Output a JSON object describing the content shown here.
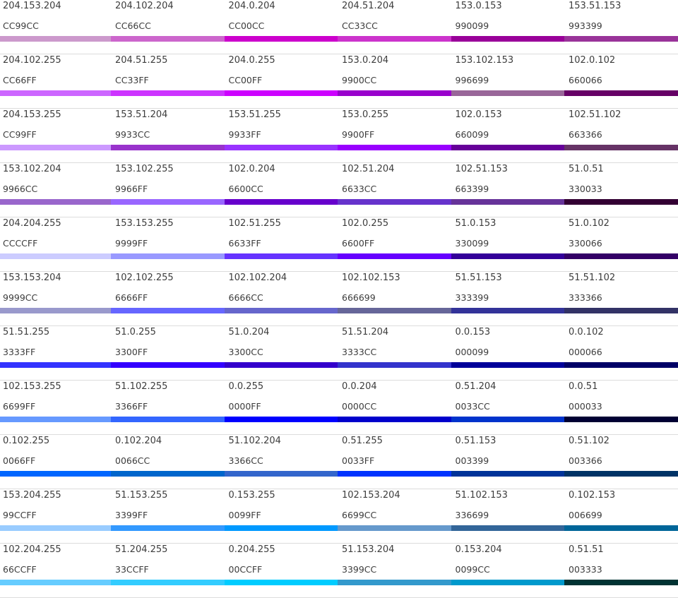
{
  "rows": [
    [
      {
        "rgb": "204.153.204",
        "hex": "CC99CC",
        "color": "#CC99CC"
      },
      {
        "rgb": "204.102.204",
        "hex": "CC66CC",
        "color": "#CC66CC"
      },
      {
        "rgb": "204.0.204",
        "hex": "CC00CC",
        "color": "#CC00CC"
      },
      {
        "rgb": "204.51.204",
        "hex": "CC33CC",
        "color": "#CC33CC"
      },
      {
        "rgb": "153.0.153",
        "hex": "990099",
        "color": "#990099"
      },
      {
        "rgb": "153.51.153",
        "hex": "993399",
        "color": "#993399"
      }
    ],
    [
      {
        "rgb": "204.102.255",
        "hex": "CC66FF",
        "color": "#CC66FF"
      },
      {
        "rgb": "204.51.255",
        "hex": "CC33FF",
        "color": "#CC33FF"
      },
      {
        "rgb": "204.0.255",
        "hex": "CC00FF",
        "color": "#CC00FF"
      },
      {
        "rgb": "153.0.204",
        "hex": "9900CC",
        "color": "#9900CC"
      },
      {
        "rgb": "153.102.153",
        "hex": "996699",
        "color": "#996699"
      },
      {
        "rgb": "102.0.102",
        "hex": "660066",
        "color": "#660066"
      }
    ],
    [
      {
        "rgb": "204.153.255",
        "hex": "CC99FF",
        "color": "#CC99FF"
      },
      {
        "rgb": "153.51.204",
        "hex": "9933CC",
        "color": "#9933CC"
      },
      {
        "rgb": "153.51.255",
        "hex": "9933FF",
        "color": "#9933FF"
      },
      {
        "rgb": "153.0.255",
        "hex": "9900FF",
        "color": "#9900FF"
      },
      {
        "rgb": "102.0.153",
        "hex": "660099",
        "color": "#660099"
      },
      {
        "rgb": "102.51.102",
        "hex": "663366",
        "color": "#663366"
      }
    ],
    [
      {
        "rgb": "153.102.204",
        "hex": "9966CC",
        "color": "#9966CC"
      },
      {
        "rgb": "153.102.255",
        "hex": "9966FF",
        "color": "#9966FF"
      },
      {
        "rgb": "102.0.204",
        "hex": "6600CC",
        "color": "#6600CC"
      },
      {
        "rgb": "102.51.204",
        "hex": "6633CC",
        "color": "#6633CC"
      },
      {
        "rgb": "102.51.153",
        "hex": "663399",
        "color": "#663399"
      },
      {
        "rgb": "51.0.51",
        "hex": "330033",
        "color": "#330033"
      }
    ],
    [
      {
        "rgb": "204.204.255",
        "hex": "CCCCFF",
        "color": "#CCCCFF"
      },
      {
        "rgb": "153.153.255",
        "hex": "9999FF",
        "color": "#9999FF"
      },
      {
        "rgb": "102.51.255",
        "hex": "6633FF",
        "color": "#6633FF"
      },
      {
        "rgb": "102.0.255",
        "hex": "6600FF",
        "color": "#6600FF"
      },
      {
        "rgb": "51.0.153",
        "hex": "330099",
        "color": "#330099"
      },
      {
        "rgb": "51.0.102",
        "hex": "330066",
        "color": "#330066"
      }
    ],
    [
      {
        "rgb": "153.153.204",
        "hex": "9999CC",
        "color": "#9999CC"
      },
      {
        "rgb": "102.102.255",
        "hex": "6666FF",
        "color": "#6666FF"
      },
      {
        "rgb": "102.102.204",
        "hex": "6666CC",
        "color": "#6666CC"
      },
      {
        "rgb": "102.102.153",
        "hex": "666699",
        "color": "#666699"
      },
      {
        "rgb": "51.51.153",
        "hex": "333399",
        "color": "#333399"
      },
      {
        "rgb": "51.51.102",
        "hex": "333366",
        "color": "#333366"
      }
    ],
    [
      {
        "rgb": "51.51.255",
        "hex": "3333FF",
        "color": "#3333FF"
      },
      {
        "rgb": "51.0.255",
        "hex": "3300FF",
        "color": "#3300FF"
      },
      {
        "rgb": "51.0.204",
        "hex": "3300CC",
        "color": "#3300CC"
      },
      {
        "rgb": "51.51.204",
        "hex": "3333CC",
        "color": "#3333CC"
      },
      {
        "rgb": "0.0.153",
        "hex": "000099",
        "color": "#000099"
      },
      {
        "rgb": "0.0.102",
        "hex": "000066",
        "color": "#000066"
      }
    ],
    [
      {
        "rgb": "102.153.255",
        "hex": "6699FF",
        "color": "#6699FF"
      },
      {
        "rgb": "51.102.255",
        "hex": "3366FF",
        "color": "#3366FF"
      },
      {
        "rgb": "0.0.255",
        "hex": "0000FF",
        "color": "#0000FF"
      },
      {
        "rgb": "0.0.204",
        "hex": "0000CC",
        "color": "#0000CC"
      },
      {
        "rgb": "0.51.204",
        "hex": "0033CC",
        "color": "#0033CC"
      },
      {
        "rgb": "0.0.51",
        "hex": "000033",
        "color": "#000033"
      }
    ],
    [
      {
        "rgb": "0.102.255",
        "hex": "0066FF",
        "color": "#0066FF"
      },
      {
        "rgb": "0.102.204",
        "hex": "0066CC",
        "color": "#0066CC"
      },
      {
        "rgb": "51.102.204",
        "hex": "3366CC",
        "color": "#3366CC"
      },
      {
        "rgb": "0.51.255",
        "hex": "0033FF",
        "color": "#0033FF"
      },
      {
        "rgb": "0.51.153",
        "hex": "003399",
        "color": "#003399"
      },
      {
        "rgb": "0.51.102",
        "hex": "003366",
        "color": "#003366"
      }
    ],
    [
      {
        "rgb": "153.204.255",
        "hex": "99CCFF",
        "color": "#99CCFF"
      },
      {
        "rgb": "51.153.255",
        "hex": "3399FF",
        "color": "#3399FF"
      },
      {
        "rgb": "0.153.255",
        "hex": "0099FF",
        "color": "#0099FF"
      },
      {
        "rgb": "102.153.204",
        "hex": "6699CC",
        "color": "#6699CC"
      },
      {
        "rgb": "51.102.153",
        "hex": "336699",
        "color": "#336699"
      },
      {
        "rgb": "0.102.153",
        "hex": "006699",
        "color": "#006699"
      }
    ],
    [
      {
        "rgb": "102.204.255",
        "hex": "66CCFF",
        "color": "#66CCFF"
      },
      {
        "rgb": "51.204.255",
        "hex": "33CCFF",
        "color": "#33CCFF"
      },
      {
        "rgb": "0.204.255",
        "hex": "00CCFF",
        "color": "#00CCFF"
      },
      {
        "rgb": "51.153.204",
        "hex": "3399CC",
        "color": "#3399CC"
      },
      {
        "rgb": "0.153.204",
        "hex": "0099CC",
        "color": "#0099CC"
      },
      {
        "rgb": "0.51.51",
        "hex": "003333",
        "color": "#003333"
      }
    ]
  ]
}
